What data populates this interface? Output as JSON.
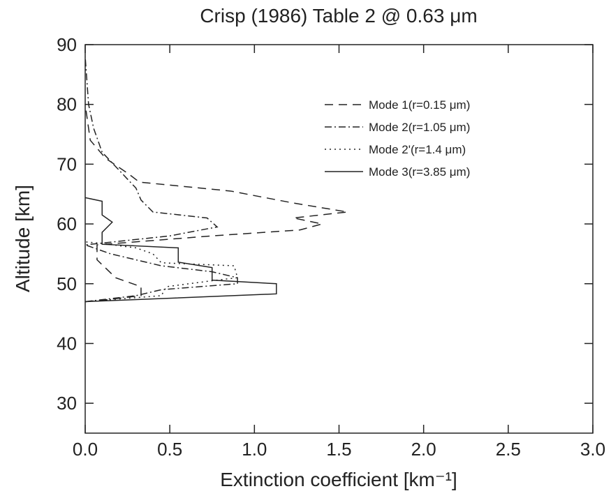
{
  "chart_data": {
    "type": "line",
    "title": "Crisp (1986) Table 2 @ 0.63 μm",
    "x_label": "Extinction coefficient [km⁻¹]",
    "y_label": "Altitude [km]",
    "xlim": [
      0,
      3
    ],
    "ylim": [
      25,
      90
    ],
    "xticks": [
      {
        "value": 0,
        "label": "0.0"
      },
      0.5,
      {
        "value": 1,
        "label": "1.0"
      },
      1.5,
      {
        "value": 2,
        "label": "2.0"
      },
      2.5,
      {
        "value": 3,
        "label": "3.0"
      }
    ],
    "yticks": [
      30,
      40,
      50,
      60,
      70,
      80,
      90
    ],
    "legend": "upper-right",
    "series": [
      {
        "name": "Mode 1(r=0.15 μm)",
        "color": "#222222",
        "dash": "12,8",
        "x": [
          0.0,
          0.12,
          0.33,
          0.33,
          0.18,
          0.07,
          0.07,
          0.75,
          1.27,
          1.4,
          1.23,
          1.55,
          1.23,
          0.86,
          0.32,
          0.26,
          0.12,
          0.03,
          0.0
        ],
        "y": [
          47,
          47.3,
          48,
          49.5,
          51,
          54,
          56.5,
          58,
          59,
          60,
          61,
          62,
          63.5,
          65.5,
          67,
          68.3,
          71,
          74,
          80
        ]
      },
      {
        "name": "Mode 2(r=1.05 μm)",
        "color": "#222222",
        "dash": "10,4,2,4",
        "x": [
          0.0,
          0.3,
          0.45,
          0.9,
          0.9,
          0.75,
          0.45,
          0.15,
          0.0,
          0.5,
          0.78,
          0.72,
          0.4,
          0.33,
          0.3,
          0.2,
          0.1,
          0.05,
          0.02,
          0.0
        ],
        "y": [
          47,
          48,
          49,
          50,
          51,
          52,
          53,
          55,
          56.5,
          58,
          59.5,
          61,
          62,
          64,
          66,
          69,
          72,
          76,
          80,
          88
        ]
      },
      {
        "name": "Mode 2'(r=1.4 μm)",
        "color": "#222222",
        "dash": "2,5",
        "x": [
          0.0,
          0.45,
          0.48,
          0.75,
          0.9,
          0.88,
          0.45,
          0.4,
          0.3,
          0.08,
          0.0
        ],
        "y": [
          47,
          48,
          49.5,
          50.5,
          51,
          53,
          53.5,
          55,
          56,
          56.8,
          57
        ]
      },
      {
        "name": "Mode 3(r=3.85 μm)",
        "color": "#222222",
        "dash": "none",
        "x": [
          0.0,
          1.13,
          1.13,
          0.75,
          0.75,
          0.55,
          0.55,
          0.1,
          0.1,
          0.16,
          0.1,
          0.1,
          0.0
        ],
        "y": [
          47,
          48.3,
          50,
          50.6,
          52.7,
          53.6,
          56,
          56.6,
          58.6,
          60.3,
          61.5,
          63.8,
          64.4
        ]
      }
    ]
  }
}
